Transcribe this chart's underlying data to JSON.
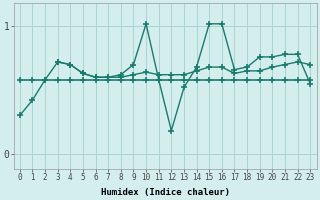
{
  "line1_x": [
    0,
    1,
    2,
    3,
    4,
    5,
    6,
    7,
    8,
    9,
    10,
    11,
    12,
    13,
    14,
    15,
    16,
    17,
    18,
    19,
    20,
    21,
    22,
    23
  ],
  "line1_y": [
    0.58,
    0.58,
    0.58,
    0.58,
    0.58,
    0.58,
    0.58,
    0.58,
    0.58,
    0.58,
    0.58,
    0.58,
    0.58,
    0.58,
    0.58,
    0.58,
    0.58,
    0.58,
    0.58,
    0.58,
    0.58,
    0.58,
    0.58,
    0.58
  ],
  "line2_x": [
    0,
    1,
    2,
    3,
    4,
    5,
    6,
    7,
    8,
    9,
    10,
    11,
    12,
    13,
    14,
    15,
    16,
    17,
    18,
    19,
    20,
    21,
    22,
    23
  ],
  "line2_y": [
    0.3,
    0.42,
    0.58,
    0.72,
    0.7,
    0.63,
    0.6,
    0.6,
    0.62,
    0.7,
    1.02,
    0.58,
    0.18,
    0.52,
    0.68,
    1.02,
    1.02,
    0.66,
    0.68,
    0.76,
    0.76,
    0.78,
    0.78,
    0.55
  ],
  "line3_x": [
    3,
    4,
    5,
    6,
    7,
    8,
    9,
    10,
    11,
    12,
    13,
    14,
    15,
    16,
    17,
    18,
    19,
    20,
    21,
    22,
    23
  ],
  "line3_y": [
    0.72,
    0.7,
    0.63,
    0.6,
    0.6,
    0.6,
    0.62,
    0.64,
    0.62,
    0.62,
    0.62,
    0.65,
    0.68,
    0.68,
    0.63,
    0.65,
    0.65,
    0.68,
    0.7,
    0.72,
    0.7
  ],
  "color": "#1a7a6e",
  "bg_color": "#d4eeed",
  "grid_color": "#aad4d0",
  "xlabel": "Humidex (Indice chaleur)",
  "xlim": [
    -0.5,
    23.5
  ],
  "ylim": [
    -0.12,
    1.18
  ],
  "yticks": [
    0,
    1
  ],
  "xticks": [
    0,
    1,
    2,
    3,
    4,
    5,
    6,
    7,
    8,
    9,
    10,
    11,
    12,
    13,
    14,
    15,
    16,
    17,
    18,
    19,
    20,
    21,
    22,
    23
  ]
}
